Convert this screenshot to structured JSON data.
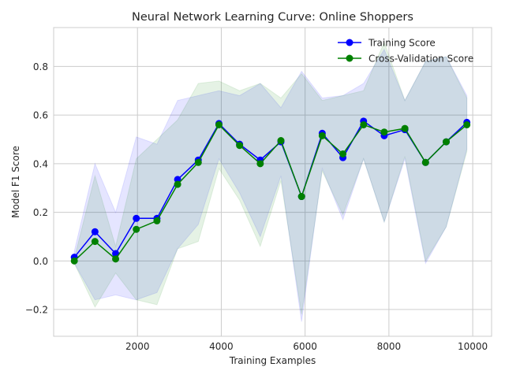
{
  "chart_data": {
    "type": "line",
    "title": "Neural Network Learning Curve: Online Shoppers",
    "xlabel": "Training Examples",
    "ylabel": "Model F1 Score",
    "xlim": [
      0,
      10450
    ],
    "ylim": [
      -0.31,
      0.96
    ],
    "xticks": [
      2000,
      4000,
      6000,
      8000,
      10000
    ],
    "yticks": [
      -0.2,
      0.0,
      0.2,
      0.4,
      0.6,
      0.8
    ],
    "xtick_labels": [
      "2000",
      "4000",
      "6000",
      "8000",
      "10000"
    ],
    "ytick_labels": [
      "−0.2",
      "0.0",
      "0.2",
      "0.4",
      "0.6",
      "0.8"
    ],
    "grid": true,
    "legend_position": "top-right",
    "x": [
      493,
      986,
      1479,
      1972,
      2465,
      2958,
      3451,
      3944,
      4437,
      4930,
      5423,
      5916,
      6409,
      6902,
      7395,
      7888,
      8381,
      8874,
      9367,
      9860
    ],
    "series": [
      {
        "name": "Training Score",
        "color": "#0000ff",
        "values": [
          0.015,
          0.12,
          0.03,
          0.175,
          0.175,
          0.335,
          0.415,
          0.565,
          0.48,
          0.415,
          0.49,
          0.265,
          0.525,
          0.425,
          0.575,
          0.515,
          0.54,
          0.405,
          0.49,
          0.57
        ],
        "band_upper": [
          0.04,
          0.4,
          0.2,
          0.51,
          0.48,
          0.66,
          0.68,
          0.7,
          0.68,
          0.73,
          0.63,
          0.78,
          0.67,
          0.68,
          0.73,
          0.87,
          0.66,
          0.82,
          0.84,
          0.68
        ],
        "band_lower": [
          -0.01,
          -0.16,
          -0.14,
          -0.16,
          -0.13,
          0.05,
          0.15,
          0.42,
          0.28,
          0.1,
          0.35,
          -0.25,
          0.38,
          0.17,
          0.42,
          0.16,
          0.42,
          -0.01,
          0.14,
          0.46
        ]
      },
      {
        "name": "Cross-Validation Score",
        "color": "#008000",
        "values": [
          0.0,
          0.08,
          0.008,
          0.13,
          0.165,
          0.315,
          0.405,
          0.56,
          0.475,
          0.4,
          0.495,
          0.265,
          0.515,
          0.44,
          0.56,
          0.53,
          0.545,
          0.405,
          0.49,
          0.56
        ],
        "band_upper": [
          0.01,
          0.35,
          0.06,
          0.42,
          0.5,
          0.58,
          0.73,
          0.74,
          0.7,
          0.73,
          0.67,
          0.77,
          0.66,
          0.68,
          0.7,
          0.9,
          0.66,
          0.82,
          0.84,
          0.67
        ],
        "band_lower": [
          -0.01,
          -0.19,
          -0.05,
          -0.16,
          -0.18,
          0.05,
          0.08,
          0.38,
          0.25,
          0.06,
          0.33,
          -0.22,
          0.37,
          0.19,
          0.42,
          0.16,
          0.43,
          0.0,
          0.14,
          0.45
        ]
      }
    ]
  }
}
